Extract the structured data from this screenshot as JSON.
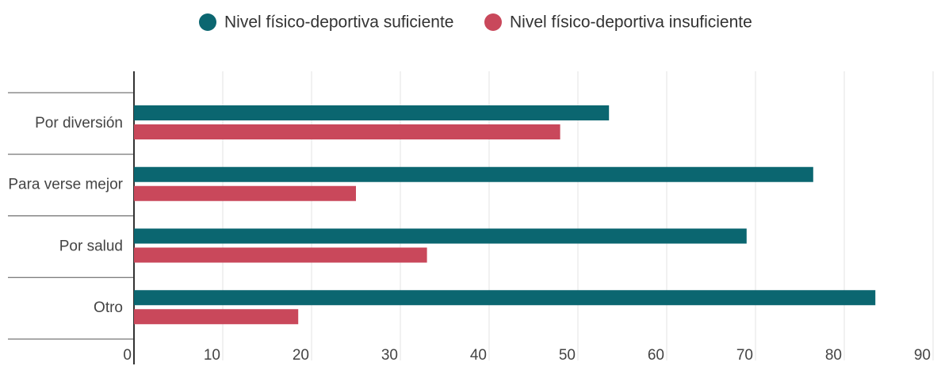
{
  "chart_data": {
    "type": "bar",
    "orientation": "horizontal",
    "categories": [
      "Por diversión",
      "Para verse mejor",
      "Por salud",
      "Otro"
    ],
    "series": [
      {
        "name": "Nivel físico-deportiva suficiente",
        "color": "#0b6670",
        "values": [
          53.5,
          76.5,
          69,
          83.5
        ]
      },
      {
        "name": "Nivel físico-deportiva insuficiente",
        "color": "#c9485b",
        "values": [
          48,
          25,
          33,
          18.5
        ]
      }
    ],
    "xlim": [
      0,
      90
    ],
    "xticks": [
      0,
      10,
      20,
      30,
      40,
      50,
      60,
      70,
      80,
      90
    ],
    "grid": true,
    "legend": "top"
  }
}
